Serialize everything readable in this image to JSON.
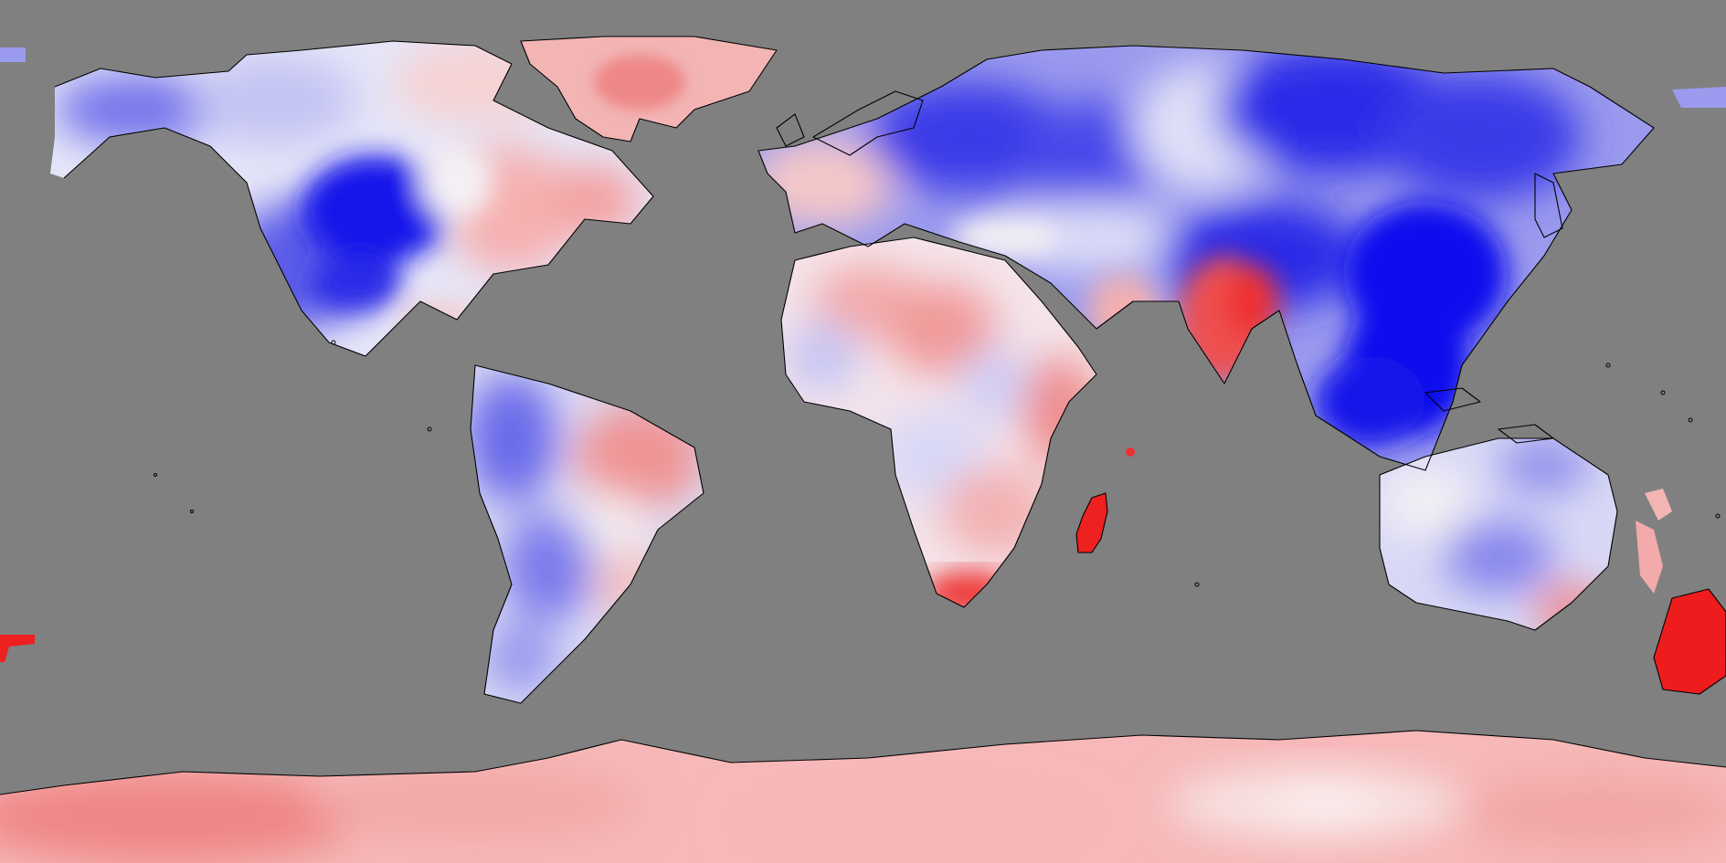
{
  "map": {
    "projection": "equirectangular",
    "ocean_mask_color": "#808080",
    "palette": {
      "strong_cold": "#0a0aee",
      "cold": "#3c3ce6",
      "cool": "#8c8cee",
      "slightly_cool": "#c8c8f6",
      "neutral": "#f4f0f4",
      "slightly_warm": "#f6c8c8",
      "warm": "#f08888",
      "strong_warm": "#ee2020"
    },
    "regions": [
      {
        "name": "north-america-northwest",
        "anomaly": "cool"
      },
      {
        "name": "central-united-states",
        "anomaly": "strong_cold"
      },
      {
        "name": "eastern-north-america",
        "anomaly": "slightly_warm"
      },
      {
        "name": "greenland",
        "anomaly": "warm"
      },
      {
        "name": "south-america-west",
        "anomaly": "cold"
      },
      {
        "name": "south-america-east",
        "anomaly": "warm"
      },
      {
        "name": "northern-europe",
        "anomaly": "cold"
      },
      {
        "name": "siberia-east-asia",
        "anomaly": "strong_cold"
      },
      {
        "name": "southeast-asia",
        "anomaly": "strong_cold"
      },
      {
        "name": "africa",
        "anomaly": "slightly_warm"
      },
      {
        "name": "madagascar",
        "anomaly": "strong_warm"
      },
      {
        "name": "india",
        "anomaly": "warm"
      },
      {
        "name": "australia",
        "anomaly": "cool"
      },
      {
        "name": "new-zealand",
        "anomaly": "strong_warm"
      },
      {
        "name": "antarctica",
        "anomaly": "slightly_warm"
      }
    ]
  }
}
